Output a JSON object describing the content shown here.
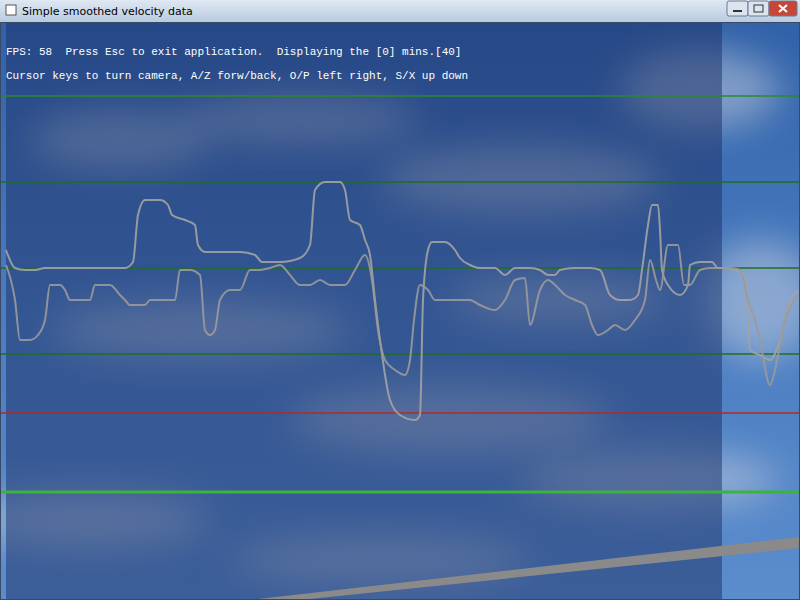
{
  "chart_data": {
    "type": "line",
    "title": "Simple smoothed velocity data",
    "annotations": [
      "FPS: 58  Press Esc to exit application.  Displaying the [0] mins.[40]",
      "Cursor keys to turn camera, A/Z forw/back, O/P left right, S/X up down"
    ],
    "xlim": [
      0,
      800
    ],
    "ylim": [
      -187,
      391
    ],
    "yticks": [
      59,
      145,
      231,
      317
    ],
    "grid": true,
    "tick_labels": false,
    "reference_lines": [
      {
        "value": 0,
        "color": "#b42828"
      },
      {
        "value": -79,
        "color": "#3cb43c"
      }
    ],
    "series": [
      {
        "color": "#a3a3a3",
        "x": [
          6,
          15,
          25,
          35,
          45,
          55,
          65,
          75,
          85,
          95,
          105,
          115,
          125,
          133,
          138,
          145,
          160,
          168,
          172,
          185,
          195,
          198,
          205,
          225,
          240,
          255,
          262,
          280,
          300,
          310,
          315,
          325,
          340,
          345,
          350,
          360,
          365,
          370,
          375,
          380,
          390,
          400,
          415,
          420,
          423,
          428,
          432,
          445,
          455,
          460,
          470,
          480,
          495,
          505,
          515,
          530,
          540,
          548,
          555,
          560,
          575,
          590,
          600,
          610,
          620,
          630,
          638,
          642,
          648,
          652,
          658,
          660,
          662,
          668,
          680,
          688,
          690,
          700,
          712,
          718,
          725,
          735,
          745,
          750,
          760,
          770,
          780,
          790,
          800
        ],
        "values": [
          163,
          145,
          143,
          143,
          145,
          145,
          145,
          145,
          145,
          145,
          145,
          145,
          145,
          151,
          198,
          213,
          213,
          208,
          198,
          193,
          188,
          168,
          161,
          161,
          161,
          158,
          151,
          151,
          155,
          168,
          223,
          231,
          231,
          223,
          193,
          188,
          173,
          158,
          113,
          73,
          13,
          -2,
          -7,
          -2,
          113,
          163,
          171,
          171,
          163,
          155,
          148,
          145,
          145,
          138,
          145,
          145,
          143,
          138,
          138,
          143,
          145,
          145,
          143,
          118,
          113,
          113,
          118,
          143,
          188,
          208,
          208,
          183,
          143,
          128,
          118,
          128,
          148,
          151,
          151,
          145,
          145,
          143,
          138,
          63,
          58,
          53,
          73,
          113,
          123
        ]
      },
      {
        "color": "#9a9a9a",
        "x": [
          6,
          15,
          20,
          25,
          30,
          38,
          45,
          50,
          60,
          65,
          70,
          80,
          90,
          95,
          110,
          120,
          125,
          130,
          145,
          150,
          160,
          175,
          180,
          190,
          200,
          205,
          210,
          215,
          220,
          230,
          240,
          250,
          260,
          270,
          280,
          290,
          300,
          310,
          320,
          330,
          345,
          355,
          365,
          372,
          378,
          385,
          395,
          405,
          410,
          414,
          420,
          428,
          435,
          445,
          460,
          470,
          480,
          495,
          505,
          515,
          525,
          530,
          540,
          548,
          555,
          565,
          575,
          585,
          592,
          598,
          608,
          615,
          625,
          635,
          645,
          650,
          656,
          660,
          668,
          678,
          684,
          690,
          700,
          710,
          720,
          730,
          740,
          748,
          755,
          760,
          770,
          775,
          785,
          795,
          800
        ],
        "values": [
          148,
          113,
          73,
          73,
          73,
          78,
          93,
          128,
          128,
          123,
          113,
          113,
          113,
          128,
          128,
          118,
          113,
          108,
          108,
          113,
          113,
          113,
          143,
          143,
          138,
          83,
          78,
          83,
          113,
          123,
          123,
          143,
          143,
          145,
          148,
          138,
          128,
          128,
          133,
          128,
          128,
          143,
          158,
          133,
          83,
          53,
          43,
          38,
          53,
          93,
          128,
          123,
          113,
          113,
          113,
          113,
          108,
          103,
          113,
          133,
          135,
          88,
          123,
          133,
          128,
          118,
          113,
          108,
          88,
          78,
          83,
          88,
          83,
          93,
          113,
          153,
          133,
          123,
          168,
          168,
          128,
          128,
          143,
          145,
          145,
          145,
          143,
          113,
          93,
          73,
          28,
          43,
          93,
          113,
          118
        ]
      }
    ]
  }
}
